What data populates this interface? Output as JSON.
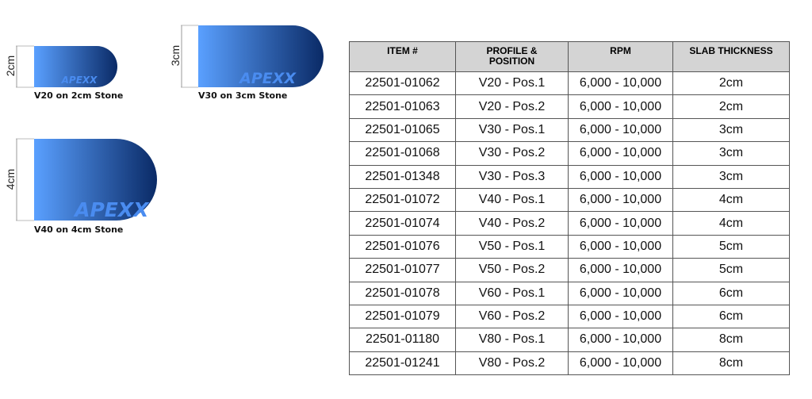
{
  "colors": {
    "gradient_start": "#5aa0ff",
    "gradient_end": "#0a2a66",
    "watermark": "#4a8cf0",
    "header_bg": "#d4d4d4"
  },
  "profiles": [
    {
      "dimension": "2cm",
      "caption": "V20 on 2cm Stone",
      "logo": "APEXX"
    },
    {
      "dimension": "3cm",
      "caption": "V30 on 3cm Stone",
      "logo": "APEXX"
    },
    {
      "dimension": "4cm",
      "caption": "V40 on 4cm Stone",
      "logo": "APEXX"
    }
  ],
  "table": {
    "headers": [
      "ITEM #",
      "PROFILE & POSITION",
      "RPM",
      "SLAB THICKNESS"
    ],
    "rows": [
      [
        "22501-01062",
        "V20 - Pos.1",
        "6,000 - 10,000",
        "2cm"
      ],
      [
        "22501-01063",
        "V20 - Pos.2",
        "6,000 - 10,000",
        "2cm"
      ],
      [
        "22501-01065",
        "V30 - Pos.1",
        "6,000 - 10,000",
        "3cm"
      ],
      [
        "22501-01068",
        "V30 - Pos.2",
        "6,000 - 10,000",
        "3cm"
      ],
      [
        "22501-01348",
        "V30 - Pos.3",
        "6,000 - 10,000",
        "3cm"
      ],
      [
        "22501-01072",
        "V40 - Pos.1",
        "6,000 - 10,000",
        "4cm"
      ],
      [
        "22501-01074",
        "V40 - Pos.2",
        "6,000 - 10,000",
        "4cm"
      ],
      [
        "22501-01076",
        "V50 - Pos.1",
        "6,000 - 10,000",
        "5cm"
      ],
      [
        "22501-01077",
        "V50 - Pos.2",
        "6,000 - 10,000",
        "5cm"
      ],
      [
        "22501-01078",
        "V60 - Pos.1",
        "6,000 - 10,000",
        "6cm"
      ],
      [
        "22501-01079",
        "V60 - Pos.2",
        "6,000 - 10,000",
        "6cm"
      ],
      [
        "22501-01180",
        "V80 - Pos.1",
        "6,000 - 10,000",
        "8cm"
      ],
      [
        "22501-01241",
        "V80 - Pos.2",
        "6,000 - 10,000",
        "8cm"
      ]
    ]
  }
}
